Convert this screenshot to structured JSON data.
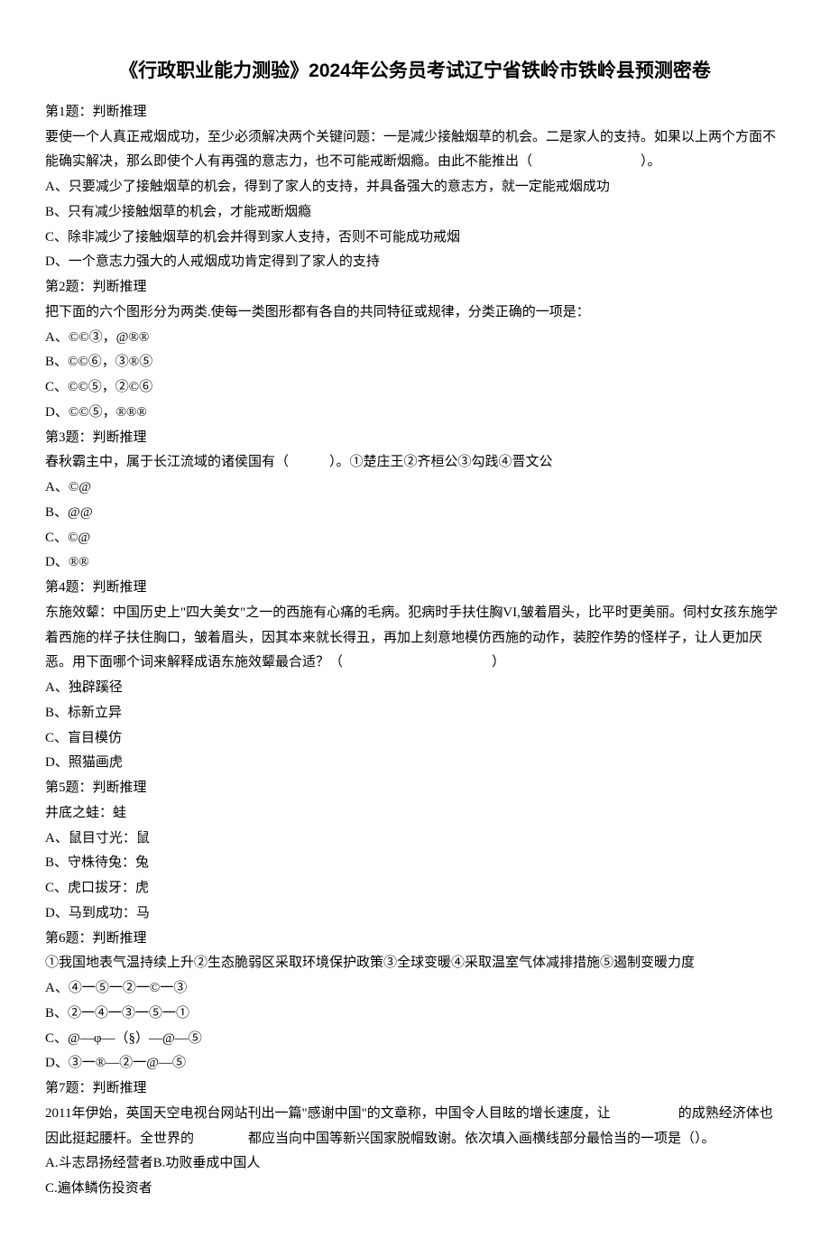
{
  "title": "《行政职业能力测验》2024年公务员考试辽宁省铁岭市铁岭县预测密卷",
  "questions": [
    {
      "header": "第1题：判断推理",
      "text": "要使一个人真正戒烟成功，至少必须解决两个关键问题：一是减少接触烟草的机会。二是家人的支持。如果以上两个方面不能确实解决，那么即使个人有再强的意志力，也不可能戒断烟瘾。由此不能推出（　　　　　　　　）。",
      "options": [
        "A、只要减少了接触烟草的机会，得到了家人的支持，并具备强大的意志方，就一定能戒烟成功",
        "B、只有减少接触烟草的机会，才能戒断烟瘾",
        "C、除非减少了接触烟草的机会并得到家人支持，否则不可能成功戒烟",
        "D、一个意志力强大的人戒烟成功肯定得到了家人的支持"
      ]
    },
    {
      "header": "第2题：判断推理",
      "text": "把下面的六个图形分为两类.使每一类图形都有各自的共同特征或规律，分类正确的一项是：",
      "options": [
        "A、©©③，@®®",
        "B、©©⑥，③®⑤",
        "C、©©⑤，②©⑥",
        "D、©©⑤，®®®"
      ]
    },
    {
      "header": "第3题：判断推理",
      "text": "春秋霸主中，属于长江流域的诸侯国有（　　　）。①楚庄王②齐桓公③勾践④晋文公",
      "options": [
        "A、©@",
        "B、@@",
        "C、©@",
        "D、®®"
      ]
    },
    {
      "header": "第4题：判断推理",
      "text": "东施效颦：中国历史上\"四大美女\"之一的西施有心痛的毛病。犯病时手扶住胸VI,皱着眉头，比平时更美丽。伺村女孩东施学着西施的样子扶住胸口，皱着眉头，因其本来就长得丑，再加上刻意地模仿西施的动作，装腔作势的怪样子，让人更加厌恶。用下面哪个词来解释成语东施效颦最合适？（　　　　　　　　　　　）",
      "options": [
        "A、独辟蹊径",
        "B、标新立异",
        "C、盲目模仿",
        "D、照猫画虎"
      ]
    },
    {
      "header": "第5题：判断推理",
      "text": "井底之蛙：蛙",
      "options": [
        "A、鼠目寸光：鼠",
        "B、守株待兔：兔",
        "C、虎口拔牙：虎",
        "D、马到成功：马"
      ]
    },
    {
      "header": "第6题：判断推理",
      "text": "①我国地表气温持续上升②生态脆弱区采取环境保护政策③全球变暖④采取温室气体减排措施⑤遏制变暖力度",
      "options": [
        "A、④一⑤一②一©一③",
        "B、②一④一③一⑤一①",
        "C、@—φ—（§）—@—⑤",
        "D、③一®—②一@—⑤"
      ]
    },
    {
      "header": "第7题：判断推理",
      "text": "2011年伊始，英国天空电视台网站刊出一篇\"感谢中国\"的文章称，中国令人目眩的增长速度，让　　　　　的成熟经济体也因此挺起腰杆。全世界的　　　　都应当向中国等新兴国家脱帽致谢。依次填入画横线部分最恰当的一项是（）。",
      "options": [
        "A.斗志昂扬经营者B.功败垂成中国人",
        "C.遍体鳞伤投资者"
      ]
    }
  ]
}
